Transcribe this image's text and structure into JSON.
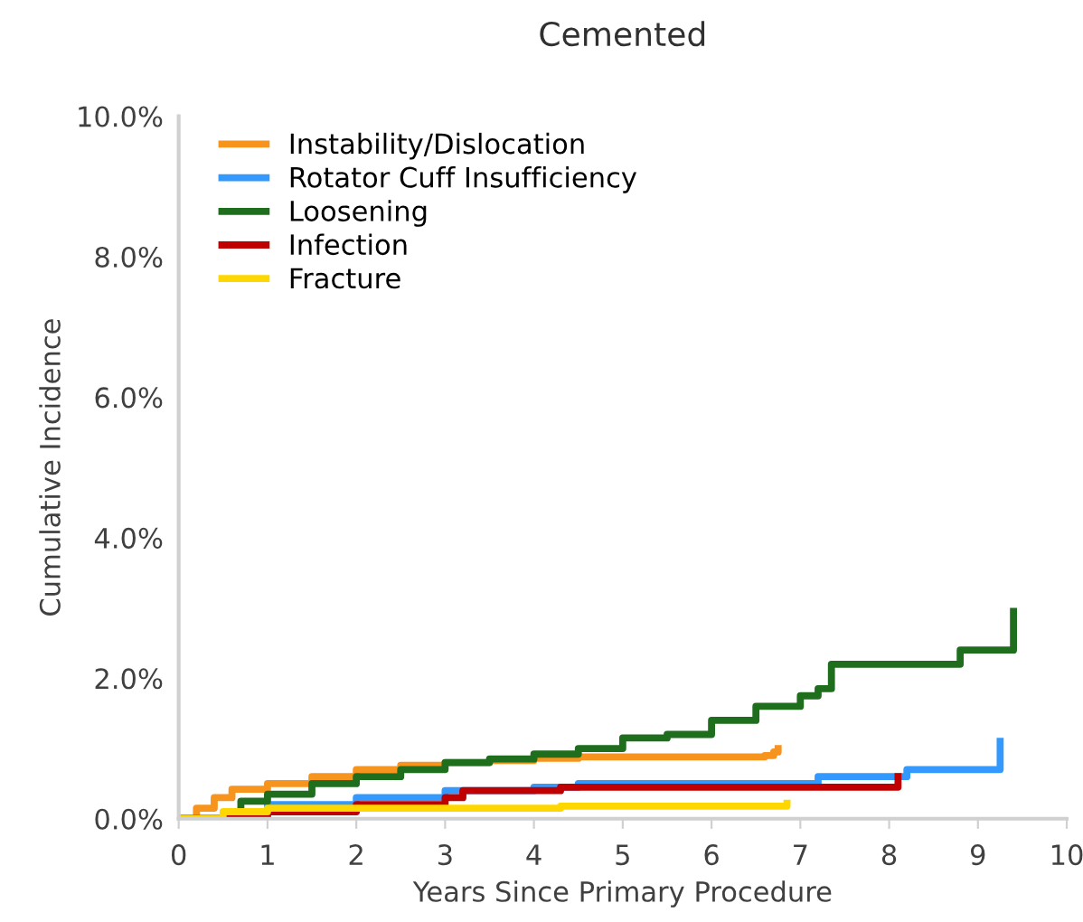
{
  "chart_data": {
    "type": "step",
    "title": "Cemented",
    "xlabel": "Years Since Primary Procedure",
    "ylabel": "Cumulative Incidence",
    "xlim": [
      0,
      10
    ],
    "xticks": [
      0,
      1,
      2,
      3,
      4,
      5,
      6,
      7,
      8,
      9,
      10
    ],
    "ylim": [
      0,
      10
    ],
    "yticks": [
      {
        "value": 0,
        "label": "0.0%"
      },
      {
        "value": 2,
        "label": "2.0%"
      },
      {
        "value": 4,
        "label": "4.0%"
      },
      {
        "value": 6,
        "label": "6.0%"
      },
      {
        "value": 8,
        "label": "8.0%"
      },
      {
        "value": 10,
        "label": "10.0%"
      }
    ],
    "grid": false,
    "legend": "top left",
    "line_style": "solid",
    "marker": "none",
    "series": [
      {
        "name": "Instability/Dislocation",
        "color": "#f7941d",
        "x": [
          0,
          0.2,
          0.4,
          0.6,
          1,
          1.5,
          2,
          2.5,
          3,
          3.5,
          4,
          4.5,
          5,
          6,
          6.6,
          6.7,
          6.75
        ],
        "values": [
          0,
          0.15,
          0.3,
          0.42,
          0.5,
          0.6,
          0.7,
          0.76,
          0.8,
          0.83,
          0.86,
          0.88,
          0.88,
          0.88,
          0.9,
          0.95,
          1.0
        ]
      },
      {
        "name": "Rotator Cuff Insufficiency",
        "color": "#3399ff",
        "x": [
          0,
          1,
          2,
          3,
          4,
          4.5,
          7.2,
          8.2,
          9.25,
          9.25
        ],
        "values": [
          0,
          0.2,
          0.3,
          0.4,
          0.45,
          0.5,
          0.6,
          0.7,
          0.7,
          1.1
        ]
      },
      {
        "name": "Loosening",
        "color": "#1e6e1e",
        "x": [
          0,
          0.7,
          1,
          1.5,
          2,
          2.5,
          3,
          3.5,
          4,
          4.5,
          5,
          5.5,
          6,
          6.5,
          7,
          7.2,
          7.35,
          8.8,
          9.4,
          9.4
        ],
        "values": [
          0,
          0.25,
          0.35,
          0.5,
          0.6,
          0.7,
          0.8,
          0.85,
          0.92,
          1.0,
          1.15,
          1.2,
          1.4,
          1.6,
          1.75,
          1.85,
          2.2,
          2.4,
          2.4,
          2.95
        ]
      },
      {
        "name": "Infection",
        "color": "#c00000",
        "x": [
          0,
          0.5,
          1,
          2,
          3,
          3.2,
          4.3,
          8.1,
          8.1
        ],
        "values": [
          0,
          0,
          0.1,
          0.2,
          0.3,
          0.4,
          0.45,
          0.45,
          0.6
        ]
      },
      {
        "name": "Fracture",
        "color": "#ffd700",
        "x": [
          0,
          0.5,
          1,
          4.3,
          6.85,
          6.85
        ],
        "values": [
          0,
          0.1,
          0.15,
          0.18,
          0.18,
          0.22
        ]
      }
    ]
  }
}
